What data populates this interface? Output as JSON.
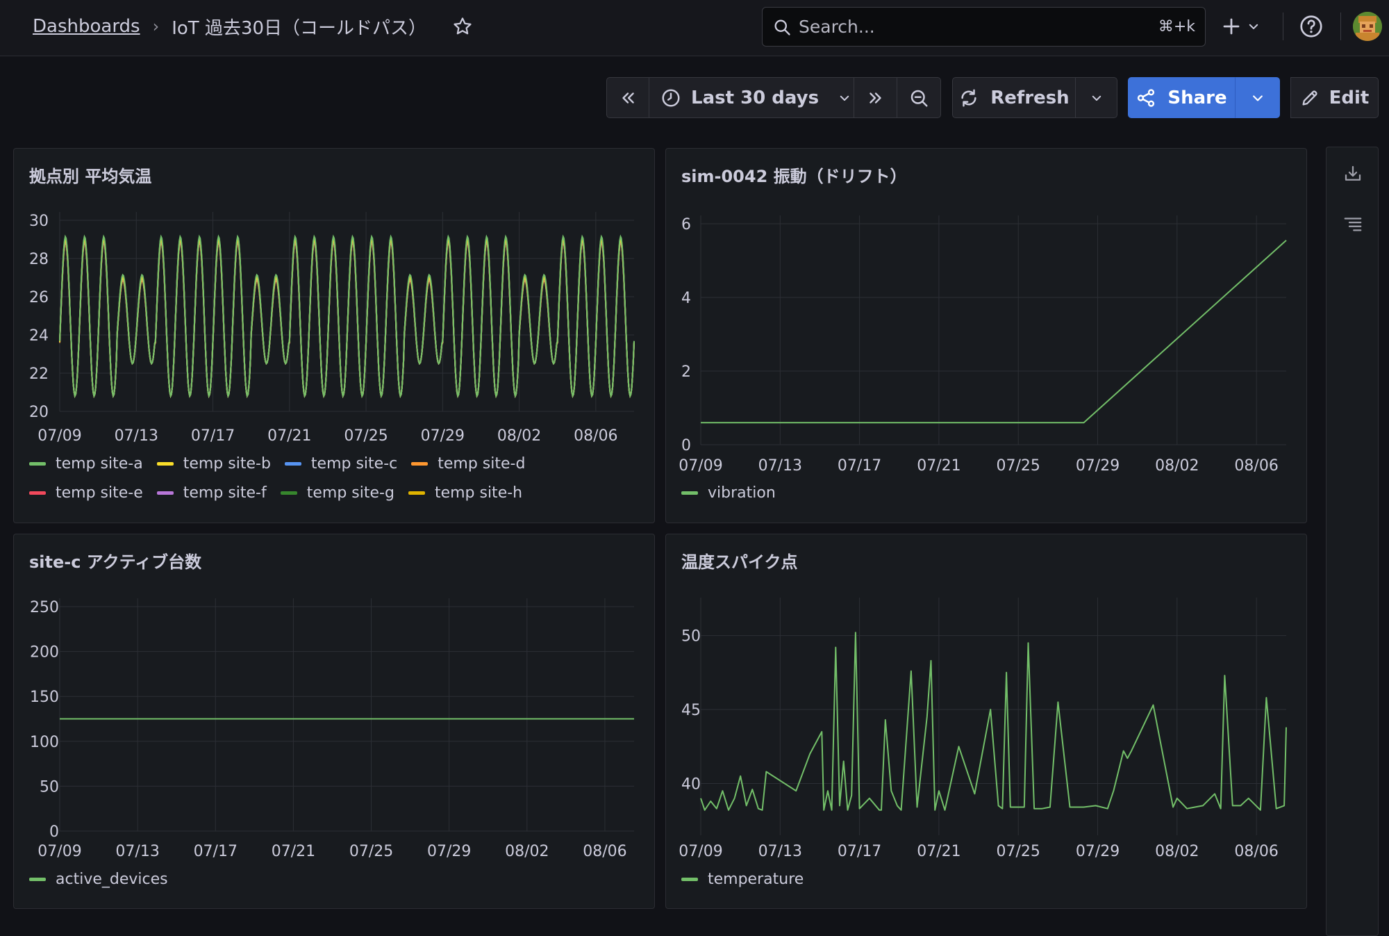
{
  "breadcrumb": {
    "root": "Dashboards",
    "separator": "›",
    "current": "IoT 過去30日（コールドパス）"
  },
  "search": {
    "placeholder": "Search...",
    "shortcut": "⌘+k"
  },
  "toolbar": {
    "time_range": "Last 30 days",
    "refresh_label": "Refresh",
    "share_label": "Share",
    "edit_label": "Edit"
  },
  "colors": {
    "accent": "#3d71d9",
    "background": "#111217",
    "panel": "#181b1f",
    "grid": "#2c2f35"
  },
  "panels": [
    {
      "title": "拠点別 平均気温",
      "chart_data": {
        "type": "line",
        "x_tick_labels": [
          "07/09",
          "07/13",
          "07/17",
          "07/21",
          "07/25",
          "07/29",
          "08/02",
          "08/06"
        ],
        "y_tick_labels": [
          "20",
          "22",
          "24",
          "26",
          "28",
          "30"
        ],
        "ylim": [
          20,
          30
        ],
        "x_days": [
          0,
          30
        ],
        "series_description": "daily sinusoidal cycle, peaks ~29 (some days ~27), troughs ~20.8",
        "daily_peak_by_day": [
          29,
          29,
          29,
          27,
          27,
          29,
          29,
          29,
          29,
          29,
          27,
          27,
          29,
          29,
          29,
          29,
          29,
          29,
          27,
          27,
          29,
          29,
          29,
          29,
          27,
          27,
          29,
          29,
          29,
          29
        ],
        "daily_trough_by_day": [
          20.8,
          20.8,
          20.8,
          22.5,
          22.5,
          20.8,
          20.8,
          20.8,
          20.8,
          20.8,
          22.5,
          22.5,
          20.8,
          20.8,
          20.8,
          20.8,
          20.8,
          20.8,
          22.5,
          22.5,
          20.8,
          20.8,
          20.8,
          20.8,
          22.5,
          22.5,
          20.8,
          20.8,
          20.8,
          20.8
        ],
        "series": [
          {
            "name": "temp site-a",
            "color": "#73bf69"
          },
          {
            "name": "temp site-b",
            "color": "#fade2a"
          },
          {
            "name": "temp site-c",
            "color": "#5794f2"
          },
          {
            "name": "temp site-d",
            "color": "#ff9830"
          },
          {
            "name": "temp site-e",
            "color": "#f2495c"
          },
          {
            "name": "temp site-f",
            "color": "#b877d9"
          },
          {
            "name": "temp site-g",
            "color": "#37872d"
          },
          {
            "name": "temp site-h",
            "color": "#e0b400"
          }
        ],
        "grid": true,
        "legend": "bottom"
      }
    },
    {
      "title": "sim-0042 振動（ドリフト）",
      "chart_data": {
        "type": "line",
        "x_tick_labels": [
          "07/09",
          "07/13",
          "07/17",
          "07/21",
          "07/25",
          "07/29",
          "08/02",
          "08/06"
        ],
        "y_tick_labels": [
          "0",
          "2",
          "4",
          "6"
        ],
        "ylim": [
          0,
          6
        ],
        "x_days": [
          0,
          29.5
        ],
        "points": [
          [
            0,
            0.6
          ],
          [
            19.3,
            0.6
          ],
          [
            29.5,
            5.55
          ]
        ],
        "series": [
          {
            "name": "vibration",
            "color": "#73bf69"
          }
        ],
        "grid": true,
        "legend": "bottom"
      }
    },
    {
      "title": "site-c アクティブ台数",
      "chart_data": {
        "type": "line",
        "x_tick_labels": [
          "07/09",
          "07/13",
          "07/17",
          "07/21",
          "07/25",
          "07/29",
          "08/02",
          "08/06"
        ],
        "y_tick_labels": [
          "0",
          "50",
          "100",
          "150",
          "200",
          "250"
        ],
        "ylim": [
          0,
          250
        ],
        "x_days": [
          0,
          29.5
        ],
        "points": [
          [
            0,
            125
          ],
          [
            29.5,
            125
          ]
        ],
        "series": [
          {
            "name": "active_devices",
            "color": "#73bf69"
          }
        ],
        "grid": true,
        "legend": "bottom"
      }
    },
    {
      "title": "温度スパイク点",
      "chart_data": {
        "type": "line",
        "x_tick_labels": [
          "07/09",
          "07/13",
          "07/17",
          "07/21",
          "07/25",
          "07/29",
          "08/02",
          "08/06"
        ],
        "y_tick_labels": [
          "40",
          "45",
          "50"
        ],
        "ylim": [
          36.5,
          52
        ],
        "x_days": [
          0,
          29.5
        ],
        "points": [
          [
            0,
            39
          ],
          [
            0.2,
            38.2
          ],
          [
            0.5,
            38.8
          ],
          [
            0.8,
            38.3
          ],
          [
            1.1,
            39.5
          ],
          [
            1.4,
            38.2
          ],
          [
            1.7,
            39
          ],
          [
            2.0,
            40.5
          ],
          [
            2.3,
            38.5
          ],
          [
            2.6,
            39.6
          ],
          [
            2.9,
            38.3
          ],
          [
            3.1,
            38.2
          ],
          [
            3.3,
            40.8
          ],
          [
            4.8,
            39.5
          ],
          [
            5.5,
            42
          ],
          [
            6.1,
            43.5
          ],
          [
            6.2,
            38.2
          ],
          [
            6.4,
            39.5
          ],
          [
            6.6,
            38.2
          ],
          [
            6.8,
            49.2
          ],
          [
            7.0,
            38.5
          ],
          [
            7.2,
            41.5
          ],
          [
            7.4,
            38.2
          ],
          [
            7.6,
            39.2
          ],
          [
            7.8,
            50.2
          ],
          [
            8.0,
            38.3
          ],
          [
            8.5,
            39
          ],
          [
            9.0,
            38.2
          ],
          [
            9.1,
            38.2
          ],
          [
            9.3,
            44.3
          ],
          [
            9.6,
            39.5
          ],
          [
            9.9,
            38.5
          ],
          [
            10.1,
            38.2
          ],
          [
            10.6,
            47.6
          ],
          [
            10.9,
            38.4
          ],
          [
            11.4,
            44.5
          ],
          [
            11.6,
            48.3
          ],
          [
            11.8,
            38.2
          ],
          [
            12.0,
            39.5
          ],
          [
            12.3,
            38.2
          ],
          [
            13.0,
            42.5
          ],
          [
            13.8,
            39.3
          ],
          [
            14.6,
            45
          ],
          [
            15.0,
            38.5
          ],
          [
            15.2,
            38.3
          ],
          [
            15.4,
            47.5
          ],
          [
            15.6,
            38.4
          ],
          [
            16.3,
            38.4
          ],
          [
            16.5,
            49.5
          ],
          [
            16.8,
            38.3
          ],
          [
            17.2,
            38.3
          ],
          [
            17.6,
            38.4
          ],
          [
            18.0,
            45.5
          ],
          [
            18.6,
            38.4
          ],
          [
            19.3,
            38.4
          ],
          [
            19.9,
            38.5
          ],
          [
            20.5,
            38.3
          ],
          [
            20.8,
            39.5
          ],
          [
            21.3,
            42.2
          ],
          [
            21.5,
            41.7
          ],
          [
            21.7,
            42.2
          ],
          [
            22.8,
            45.3
          ],
          [
            23.8,
            38.4
          ],
          [
            24.0,
            39
          ],
          [
            24.5,
            38.3
          ],
          [
            24.9,
            38.4
          ],
          [
            25.3,
            38.5
          ],
          [
            25.9,
            39.3
          ],
          [
            26.2,
            38.3
          ],
          [
            26.4,
            47.3
          ],
          [
            26.8,
            38.5
          ],
          [
            27.2,
            38.5
          ],
          [
            27.6,
            39
          ],
          [
            28.2,
            38.2
          ],
          [
            28.5,
            45.8
          ],
          [
            29.0,
            38.3
          ],
          [
            29.4,
            38.5
          ],
          [
            29.5,
            43.8
          ]
        ],
        "series": [
          {
            "name": "temperature",
            "color": "#73bf69"
          }
        ],
        "grid": true,
        "legend": "bottom"
      }
    }
  ]
}
